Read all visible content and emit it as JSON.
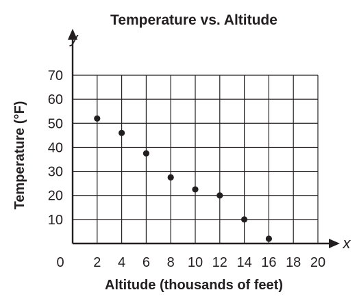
{
  "chart_data": {
    "type": "scatter",
    "title": "Temperature vs. Altitude",
    "xlabel": "Altitude (thousands of feet)",
    "ylabel": "Temperature (°F)",
    "x_var": "x",
    "y_var": "y",
    "xlim": [
      0,
      20
    ],
    "ylim": [
      0,
      70
    ],
    "x_ticks": [
      2,
      4,
      6,
      8,
      10,
      12,
      14,
      16,
      18,
      20
    ],
    "y_ticks": [
      10,
      20,
      30,
      40,
      50,
      60,
      70
    ],
    "origin_label": "0",
    "grid": true,
    "points": [
      {
        "x": 2,
        "y": 52
      },
      {
        "x": 4,
        "y": 46
      },
      {
        "x": 6,
        "y": 37.5
      },
      {
        "x": 8,
        "y": 27.5
      },
      {
        "x": 10,
        "y": 22.5
      },
      {
        "x": 12,
        "y": 20
      },
      {
        "x": 14,
        "y": 10
      },
      {
        "x": 16,
        "y": 2
      }
    ],
    "colors": {
      "ink": "#231f20",
      "background": "#ffffff"
    }
  }
}
